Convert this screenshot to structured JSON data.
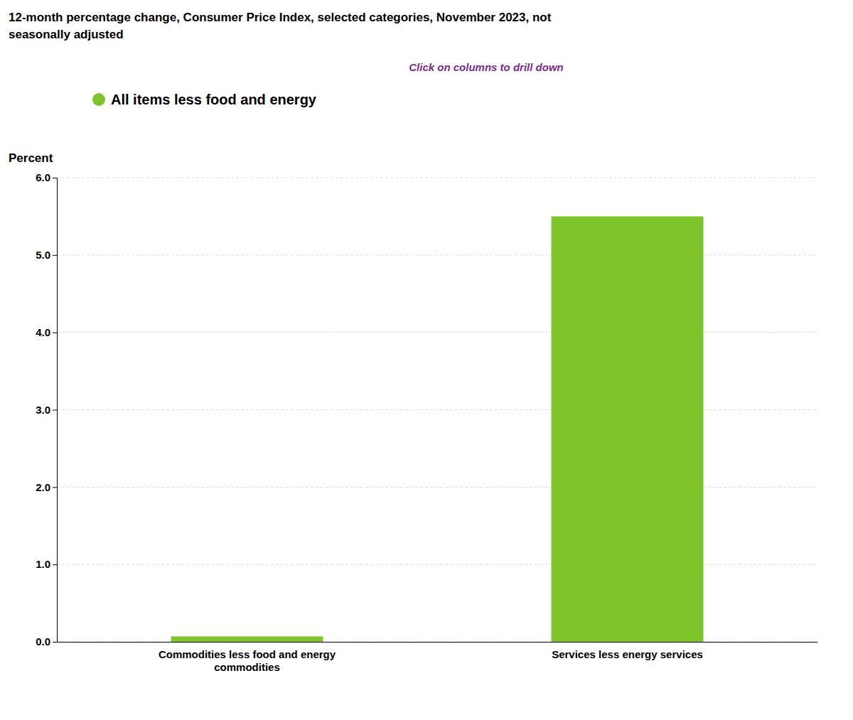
{
  "chart_data": {
    "type": "bar",
    "title": "12-month percentage change, Consumer Price Index, selected categories, November 2023, not\nseasonally adjusted",
    "subtitle": "Click on columns to drill down",
    "ylabel": "Percent",
    "categories": [
      "Commodities less food and energy\ncommodities",
      "Services less energy services"
    ],
    "series": [
      {
        "name": "All items less food and energy",
        "color": "#7DC52A",
        "values": [
          0.07,
          5.5
        ]
      }
    ],
    "ylim": [
      0.0,
      6.0
    ],
    "yticks": [
      {
        "value": 0.0,
        "label": "0.0"
      },
      {
        "value": 1.0,
        "label": "1.0"
      },
      {
        "value": 2.0,
        "label": "2.0"
      },
      {
        "value": 3.0,
        "label": "3.0"
      },
      {
        "value": 4.0,
        "label": "4.0"
      },
      {
        "value": 5.0,
        "label": "5.0"
      },
      {
        "value": 6.0,
        "label": "6.0"
      }
    ],
    "grid": true,
    "legend": "top"
  }
}
